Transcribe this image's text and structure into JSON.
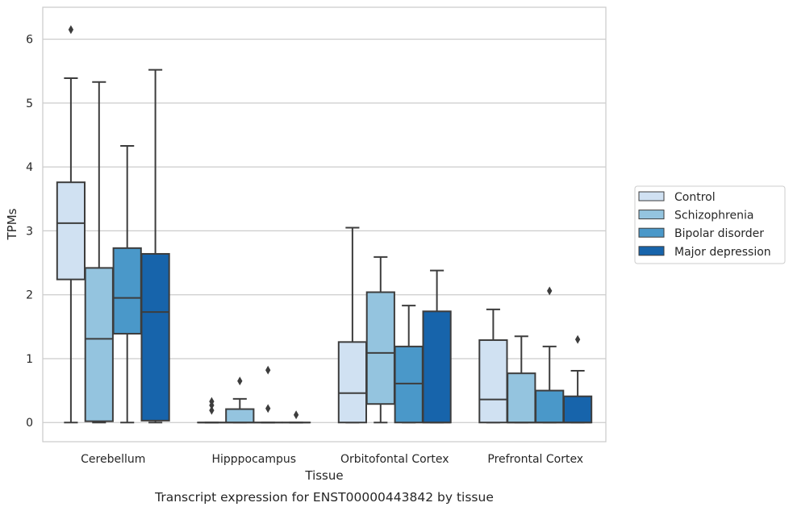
{
  "chart_data": {
    "type": "box",
    "title": "Transcript expression for ENST00000443842 by tissue",
    "xlabel": "Tissue",
    "ylabel": "TPMs",
    "ylim": [
      -0.3,
      6.5
    ],
    "yticks": [
      0,
      1,
      2,
      3,
      4,
      5,
      6
    ],
    "grid": true,
    "legend_position": "right",
    "categories": [
      "Cerebellum",
      "Hipppocampus",
      "Orbitofontal Cortex",
      "Prefrontal Cortex"
    ],
    "series": [
      {
        "name": "Control",
        "color": "#d0e1f2",
        "boxes": [
          {
            "whislo": 0,
            "q1": 2.24,
            "med": 3.12,
            "q3": 3.76,
            "whishi": 5.39,
            "fliers": [
              6.15
            ]
          },
          {
            "whislo": 0,
            "q1": 0,
            "med": 0,
            "q3": 0,
            "whishi": 0,
            "fliers": [
              0.19,
              0.27,
              0.33
            ]
          },
          {
            "whislo": 0,
            "q1": 0,
            "med": 0.46,
            "q3": 1.26,
            "whishi": 3.05,
            "fliers": []
          },
          {
            "whislo": 0,
            "q1": 0,
            "med": 0.36,
            "q3": 1.29,
            "whishi": 1.77,
            "fliers": []
          }
        ]
      },
      {
        "name": "Schizophrenia",
        "color": "#94c4df",
        "boxes": [
          {
            "whislo": 0,
            "q1": 0.02,
            "med": 1.31,
            "q3": 2.42,
            "whishi": 5.33,
            "fliers": []
          },
          {
            "whislo": 0,
            "q1": 0,
            "med": 0,
            "q3": 0.21,
            "whishi": 0.37,
            "fliers": [
              0.65
            ]
          },
          {
            "whislo": 0,
            "q1": 0.29,
            "med": 1.09,
            "q3": 2.04,
            "whishi": 2.59,
            "fliers": []
          },
          {
            "whislo": 0,
            "q1": 0,
            "med": 0,
            "q3": 0.77,
            "whishi": 1.35,
            "fliers": []
          }
        ]
      },
      {
        "name": "Bipolar disorder",
        "color": "#4a98c9",
        "boxes": [
          {
            "whislo": 0,
            "q1": 1.39,
            "med": 1.95,
            "q3": 2.73,
            "whishi": 4.33,
            "fliers": []
          },
          {
            "whislo": 0,
            "q1": 0,
            "med": 0,
            "q3": 0,
            "whishi": 0,
            "fliers": [
              0.82,
              0.22
            ]
          },
          {
            "whislo": 0,
            "q1": 0,
            "med": 0.61,
            "q3": 1.19,
            "whishi": 1.83,
            "fliers": []
          },
          {
            "whislo": 0,
            "q1": 0,
            "med": 0,
            "q3": 0.5,
            "whishi": 1.19,
            "fliers": [
              2.06
            ]
          }
        ]
      },
      {
        "name": "Major depression",
        "color": "#1764ab",
        "boxes": [
          {
            "whislo": 0,
            "q1": 0.03,
            "med": 1.73,
            "q3": 2.64,
            "whishi": 5.52,
            "fliers": []
          },
          {
            "whislo": 0,
            "q1": 0,
            "med": 0,
            "q3": 0,
            "whishi": 0,
            "fliers": [
              0.12
            ]
          },
          {
            "whislo": 0,
            "q1": 0,
            "med": 0,
            "q3": 1.74,
            "whishi": 2.38,
            "fliers": []
          },
          {
            "whislo": 0,
            "q1": 0,
            "med": 0,
            "q3": 0.41,
            "whishi": 0.81,
            "fliers": [
              1.3
            ]
          }
        ]
      }
    ]
  }
}
